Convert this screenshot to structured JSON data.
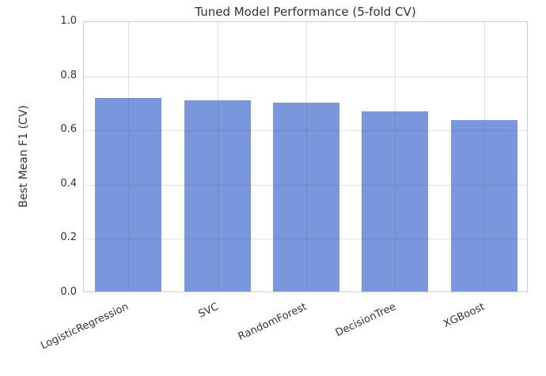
{
  "chart_data": {
    "type": "bar",
    "title": "Tuned Model Performance (5-fold CV)",
    "categories": [
      "LogisticRegression",
      "SVC",
      "RandomForest",
      "DecisionTree",
      "XGBoost"
    ],
    "values": [
      0.713,
      0.706,
      0.697,
      0.665,
      0.633
    ],
    "xlabel": "",
    "ylabel": "Best Mean F1 (CV)",
    "ylim": [
      0.0,
      1.0
    ],
    "yticks": [
      0.0,
      0.2,
      0.4,
      0.6,
      0.8,
      1.0
    ],
    "ytick_decimals": 1,
    "grid": "both",
    "legend": "none",
    "x_tick_rotation_deg": 25,
    "colors": {
      "bar": "#7A97DC",
      "grid_overlay": "rgba(90,90,90,0.18)",
      "spine": "#cccccc",
      "text": "#333333",
      "background": "#ffffff"
    }
  }
}
